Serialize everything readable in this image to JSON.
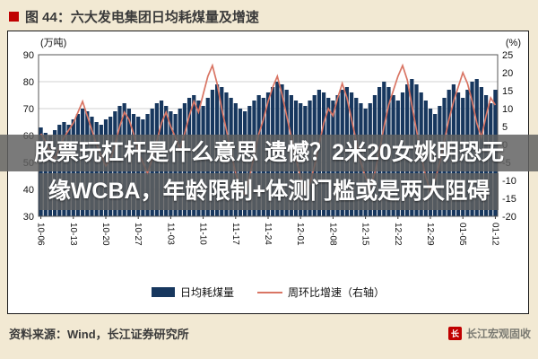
{
  "header": {
    "title": "图 44：六大发电集团日均耗煤量及增速"
  },
  "overlay": {
    "line1": "股票玩杠杆是什么意思 遗憾？2米20女姚明恐无",
    "line2": "缘WCBA，年龄限制+体测门槛或是两大阻碍"
  },
  "legend": {
    "bar_label": "日均耗煤量",
    "line_label": "周环比增速（右轴）"
  },
  "footer": {
    "source": "资料来源：Wind，长江证券研究所",
    "watermark": "长江宏观固收",
    "logo_glyph": "长"
  },
  "colors": {
    "background": "#f2e9d3",
    "accent_red": "#c00000",
    "bar": "#17375e",
    "line": "#d97564",
    "grid": "#d2d2d2",
    "axis": "#555555"
  },
  "chart_data": {
    "type": "bar",
    "title": "六大发电集团日均耗煤量及增速",
    "left_axis": {
      "unit": "(万吨)",
      "min": 30,
      "max": 90,
      "step": 10
    },
    "right_axis": {
      "unit": "(%)",
      "min": -20,
      "max": 25,
      "step": 5
    },
    "x_tick_labels": [
      "10-06",
      "10-13",
      "10-20",
      "10-27",
      "11-03",
      "11-10",
      "11-17",
      "11-24",
      "12-01",
      "12-08",
      "12-15",
      "12-22",
      "12-29",
      "01-05",
      "01-12"
    ],
    "x_tick_every": 7,
    "grid": true,
    "legend_position": "bottom",
    "series": [
      {
        "name": "日均耗煤量",
        "type": "bar",
        "axis": "left",
        "color": "#17375e",
        "values": [
          63,
          61,
          60,
          62,
          64,
          65,
          64,
          66,
          68,
          70,
          69,
          67,
          65,
          64,
          66,
          67,
          69,
          71,
          72,
          70,
          68,
          67,
          66,
          68,
          70,
          72,
          73,
          71,
          69,
          68,
          70,
          72,
          74,
          75,
          73,
          71,
          74,
          77,
          79,
          78,
          76,
          74,
          72,
          70,
          69,
          71,
          73,
          75,
          74,
          76,
          78,
          80,
          79,
          77,
          75,
          73,
          72,
          71,
          73,
          75,
          77,
          76,
          74,
          73,
          75,
          77,
          78,
          76,
          74,
          72,
          70,
          72,
          75,
          78,
          80,
          78,
          75,
          73,
          76,
          79,
          81,
          79,
          76,
          73,
          70,
          68,
          71,
          74,
          77,
          79,
          76,
          74,
          77,
          80,
          81,
          78,
          75,
          72,
          77
        ]
      },
      {
        "name": "周环比增速（右轴）",
        "type": "line",
        "axis": "right",
        "color": "#d97564",
        "values": [
          3,
          1,
          -2,
          -4,
          -1,
          2,
          4,
          6,
          9,
          12,
          8,
          4,
          0,
          -3,
          -6,
          -4,
          0,
          5,
          9,
          7,
          3,
          -2,
          -5,
          -8,
          -4,
          1,
          6,
          9,
          5,
          2,
          -1,
          3,
          8,
          12,
          9,
          14,
          19,
          22,
          17,
          10,
          4,
          -2,
          -8,
          -12,
          -14,
          -9,
          -3,
          3,
          7,
          12,
          16,
          19,
          14,
          8,
          2,
          -4,
          -9,
          -13,
          -11,
          -6,
          0,
          6,
          10,
          8,
          13,
          17,
          13,
          7,
          1,
          -5,
          -9,
          -12,
          -8,
          -2,
          5,
          11,
          15,
          19,
          22,
          18,
          11,
          4,
          -3,
          -9,
          -13,
          -10,
          -5,
          1,
          7,
          12,
          16,
          20,
          17,
          12,
          6,
          2,
          8,
          13,
          11
        ]
      }
    ]
  }
}
